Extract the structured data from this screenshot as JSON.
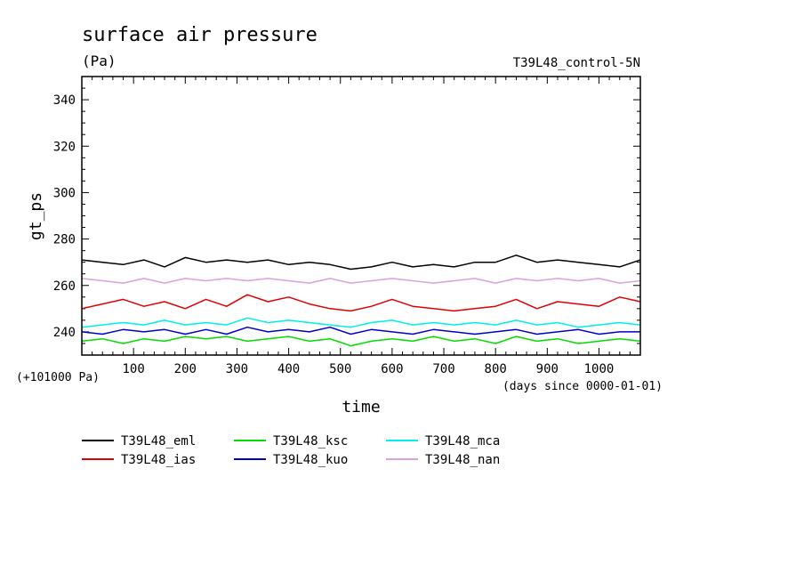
{
  "chart_data": {
    "type": "line",
    "title": "surface air pressure",
    "units_label": "(Pa)",
    "run_label": "T39L48_control-5N",
    "ylabel": "gt_ps",
    "xlabel": "time",
    "y_offset_label": "(+101000 Pa)",
    "x_unit_label": "(days since 0000-01-01)",
    "xlim": [
      0,
      1080
    ],
    "ylim": [
      230,
      350
    ],
    "x_ticks": [
      100,
      200,
      300,
      400,
      500,
      600,
      700,
      800,
      900,
      1000
    ],
    "x_tick_labels": [
      "100",
      "200",
      "300",
      "400",
      "500",
      "600",
      "700",
      "800",
      "900",
      "1000"
    ],
    "y_ticks": [
      240,
      260,
      280,
      300,
      320,
      340
    ],
    "y_tick_labels": [
      "240",
      "260",
      "280",
      "300",
      "320",
      "340"
    ],
    "legend_position": "bottom-left",
    "x": [
      0,
      40,
      80,
      120,
      160,
      200,
      240,
      280,
      320,
      360,
      400,
      440,
      480,
      520,
      560,
      600,
      640,
      680,
      720,
      760,
      800,
      840,
      880,
      920,
      960,
      1000,
      1040,
      1080
    ],
    "series": [
      {
        "name": "T39L48_eml",
        "color": "#000000",
        "values": [
          271,
          270,
          269,
          271,
          268,
          272,
          270,
          271,
          270,
          271,
          269,
          270,
          269,
          267,
          268,
          270,
          268,
          269,
          268,
          270,
          270,
          273,
          270,
          271,
          270,
          269,
          268,
          271
        ]
      },
      {
        "name": "T39L48_ias",
        "color": "#e00000",
        "values": [
          250,
          252,
          254,
          251,
          253,
          250,
          254,
          251,
          256,
          253,
          255,
          252,
          250,
          249,
          251,
          254,
          251,
          250,
          249,
          250,
          251,
          254,
          250,
          253,
          252,
          251,
          255,
          253
        ]
      },
      {
        "name": "T39L48_ksc",
        "color": "#00dd00",
        "values": [
          236,
          237,
          235,
          237,
          236,
          238,
          237,
          238,
          236,
          237,
          238,
          236,
          237,
          234,
          236,
          237,
          236,
          238,
          236,
          237,
          235,
          238,
          236,
          237,
          235,
          236,
          237,
          236
        ]
      },
      {
        "name": "T39L48_kuo",
        "color": "#0000cc",
        "values": [
          240,
          239,
          241,
          240,
          241,
          239,
          241,
          239,
          242,
          240,
          241,
          240,
          242,
          239,
          241,
          240,
          239,
          241,
          240,
          239,
          240,
          241,
          239,
          240,
          241,
          239,
          240,
          240
        ]
      },
      {
        "name": "T39L48_mca",
        "color": "#00eeee",
        "values": [
          242,
          243,
          244,
          243,
          245,
          243,
          244,
          243,
          246,
          244,
          245,
          244,
          243,
          242,
          244,
          245,
          243,
          244,
          243,
          244,
          243,
          245,
          243,
          244,
          242,
          243,
          244,
          243
        ]
      },
      {
        "name": "T39L48_nan",
        "color": "#dda0dd",
        "values": [
          263,
          262,
          261,
          263,
          261,
          263,
          262,
          263,
          262,
          263,
          262,
          261,
          263,
          261,
          262,
          263,
          262,
          261,
          262,
          263,
          261,
          263,
          262,
          263,
          262,
          263,
          261,
          262
        ]
      }
    ]
  }
}
